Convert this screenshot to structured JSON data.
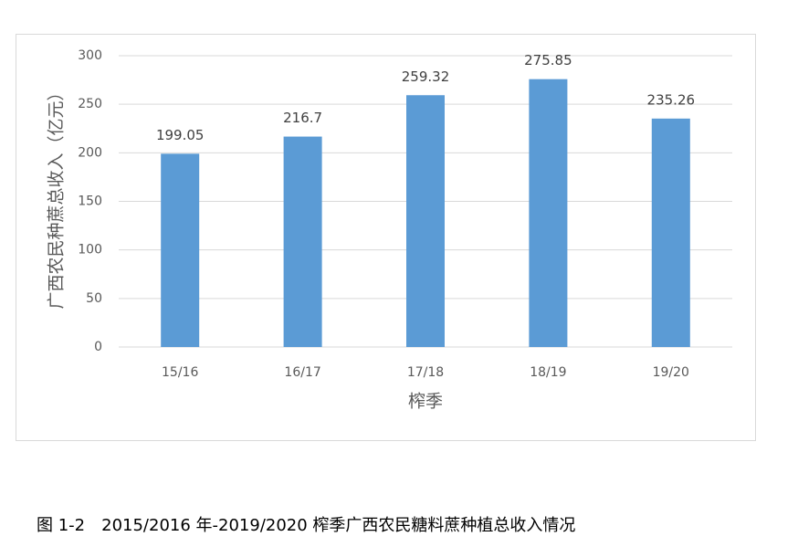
{
  "chart_data": {
    "type": "bar",
    "y_label": "广西农民种蔗总收入（亿元）",
    "x_label": "榨季",
    "categories": [
      "15/16",
      "16/17",
      "17/18",
      "18/19",
      "19/20"
    ],
    "values": [
      199.05,
      216.7,
      259.32,
      275.85,
      235.26
    ],
    "color": "#5b9bd5",
    "ylim": [
      0,
      300
    ],
    "yticks": [
      0,
      50,
      100,
      150,
      200,
      250,
      300
    ],
    "grid": true
  },
  "caption": "图 1-2　2015/2016 年-2019/2020 榨季广西农民糖料蔗种植总收入情况"
}
